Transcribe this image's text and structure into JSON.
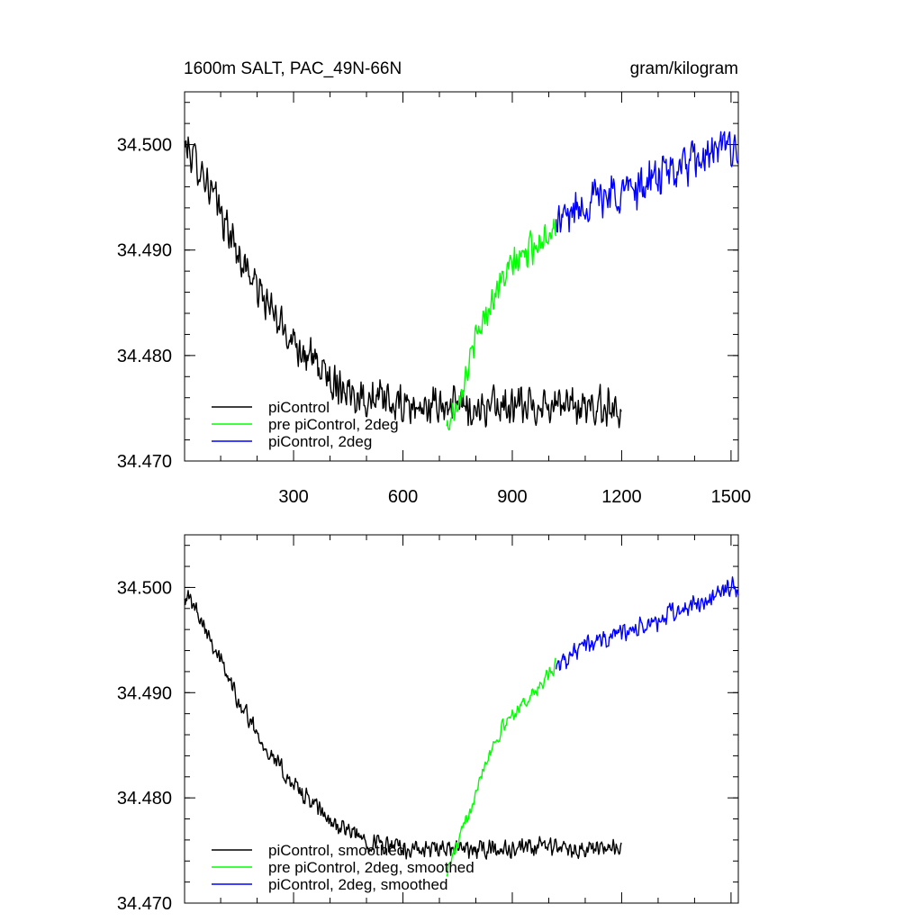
{
  "figure": {
    "title_left": "1600m SALT, PAC_49N-66N",
    "title_right": "gram/kilogram"
  },
  "chart_data": [
    {
      "type": "line",
      "panel": "top",
      "title": "1600m SALT, PAC_49N-66N",
      "units": "gram/kilogram",
      "xlim": [
        1,
        1520
      ],
      "ylim": [
        34.47,
        34.505
      ],
      "xticks": [
        300,
        600,
        900,
        1200,
        1500
      ],
      "xtick_labels_shown": true,
      "yticks": [
        34.47,
        34.48,
        34.49,
        34.5
      ],
      "ytick_labels": [
        "34.470",
        "34.480",
        "34.490",
        "34.500"
      ],
      "grid": false,
      "legend_position": "bottom-left",
      "series": [
        {
          "name": "piControl",
          "color": "#000000",
          "x": [
            1,
            50,
            100,
            150,
            200,
            250,
            300,
            350,
            400,
            450,
            500,
            550,
            600,
            650,
            700,
            750,
            800,
            850,
            900,
            950,
            1000,
            1050,
            1100,
            1150,
            1200
          ],
          "values": [
            34.5,
            34.4975,
            34.4935,
            34.4895,
            34.4865,
            34.4835,
            34.4815,
            34.4795,
            34.4778,
            34.4768,
            34.476,
            34.4755,
            34.4752,
            34.475,
            34.4752,
            34.4752,
            34.475,
            34.4752,
            34.475,
            34.4752,
            34.4755,
            34.4752,
            34.475,
            34.4752,
            34.475
          ],
          "noise_amplitude": 0.0022
        },
        {
          "name": "pre piControl, 2deg",
          "color": "#00ff00",
          "x": [
            720,
            750,
            780,
            810,
            840,
            870,
            900,
            930,
            960,
            990,
            1020
          ],
          "values": [
            34.473,
            34.476,
            34.479,
            34.4825,
            34.485,
            34.487,
            34.4885,
            34.4895,
            34.4905,
            34.4915,
            34.4925
          ],
          "noise_amplitude": 0.0018
        },
        {
          "name": "piControl, 2deg",
          "color": "#0000ff",
          "x": [
            1020,
            1060,
            1100,
            1140,
            1180,
            1220,
            1260,
            1300,
            1340,
            1380,
            1420,
            1460,
            1500,
            1520
          ],
          "values": [
            34.4925,
            34.4935,
            34.4945,
            34.495,
            34.4955,
            34.4958,
            34.4962,
            34.4968,
            34.4975,
            34.498,
            34.4985,
            34.4992,
            34.5,
            34.4995
          ],
          "noise_amplitude": 0.0024
        }
      ]
    },
    {
      "type": "line",
      "panel": "bottom",
      "xlim": [
        1,
        1520
      ],
      "ylim": [
        34.47,
        34.505
      ],
      "xticks": [
        300,
        600,
        900,
        1200,
        1500
      ],
      "xtick_labels_shown": false,
      "yticks": [
        34.47,
        34.48,
        34.49,
        34.5
      ],
      "ytick_labels": [
        "34.470",
        "34.480",
        "34.490",
        "34.500"
      ],
      "grid": false,
      "legend_position": "bottom-left",
      "series": [
        {
          "name": "piControl, smoothed",
          "color": "#000000",
          "x": [
            1,
            50,
            100,
            150,
            200,
            250,
            300,
            350,
            400,
            450,
            500,
            550,
            600,
            650,
            700,
            750,
            800,
            850,
            900,
            950,
            1000,
            1050,
            1100,
            1150,
            1200
          ],
          "values": [
            34.4995,
            34.497,
            34.493,
            34.4892,
            34.4862,
            34.4835,
            34.4812,
            34.4795,
            34.4778,
            34.4768,
            34.476,
            34.4755,
            34.4752,
            34.475,
            34.475,
            34.4752,
            34.475,
            34.4752,
            34.475,
            34.4752,
            34.4755,
            34.4752,
            34.475,
            34.4752,
            34.475
          ],
          "noise_amplitude": 0.0011
        },
        {
          "name": "pre piControl, 2deg, smoothed",
          "color": "#00ff00",
          "x": [
            720,
            750,
            780,
            810,
            840,
            870,
            900,
            930,
            960,
            990,
            1020
          ],
          "values": [
            34.473,
            34.4755,
            34.4785,
            34.482,
            34.4845,
            34.4865,
            34.488,
            34.489,
            34.49,
            34.4912,
            34.4925
          ],
          "noise_amplitude": 0.0009
        },
        {
          "name": "piControl, 2deg, smoothed",
          "color": "#0000ff",
          "x": [
            1020,
            1060,
            1100,
            1140,
            1180,
            1220,
            1260,
            1300,
            1340,
            1380,
            1420,
            1460,
            1500,
            1520
          ],
          "values": [
            34.4928,
            34.4935,
            34.4945,
            34.495,
            34.4955,
            34.4958,
            34.4962,
            34.4968,
            34.4975,
            34.498,
            34.4985,
            34.4993,
            34.5,
            34.4998
          ],
          "noise_amplitude": 0.0012
        }
      ]
    }
  ]
}
